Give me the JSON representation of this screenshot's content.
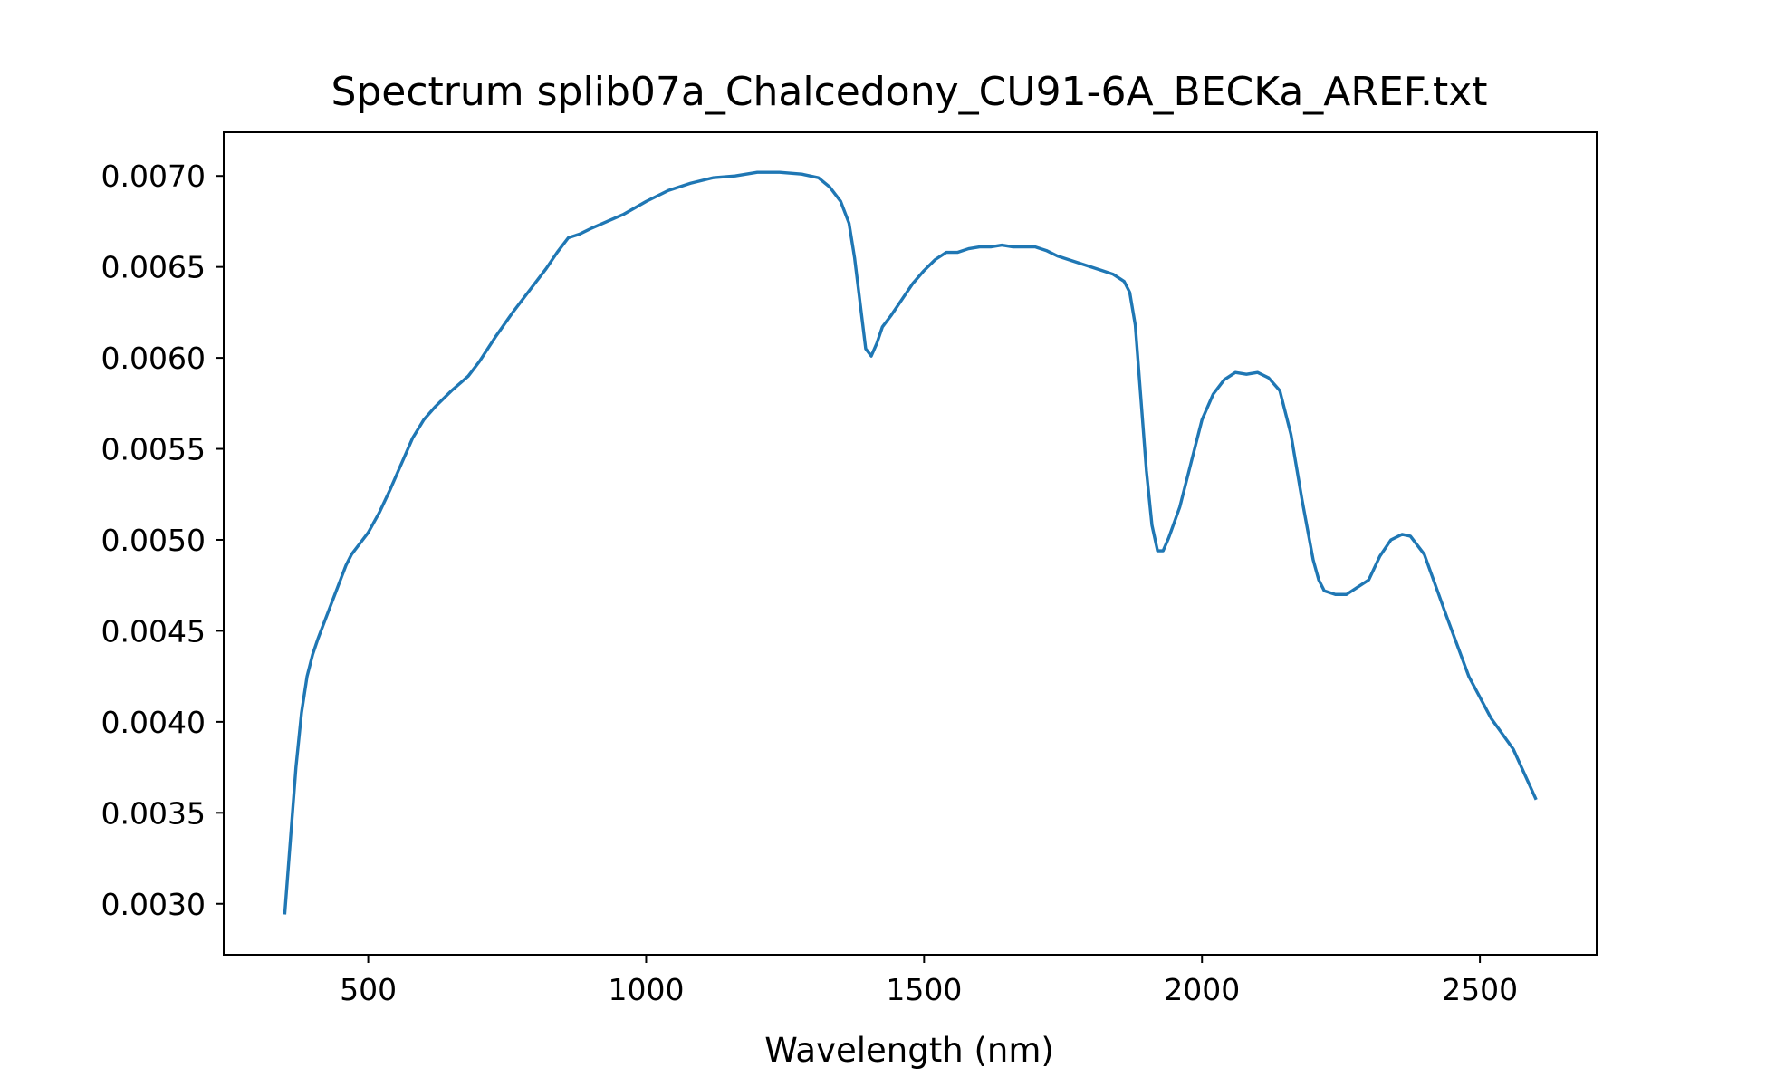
{
  "chart_data": {
    "type": "line",
    "title": "Spectrum splib07a_Chalcedony_CU91-6A_BECKa_AREF.txt",
    "xlabel": "Wavelength (nm)",
    "ylabel": "",
    "xlim": [
      240,
      2710
    ],
    "ylim": [
      0.00272,
      0.00724
    ],
    "xticks": [
      500,
      1000,
      1500,
      2000,
      2500
    ],
    "xtick_labels": [
      "500",
      "1000",
      "1500",
      "2000",
      "2500"
    ],
    "yticks": [
      0.003,
      0.0035,
      0.004,
      0.0045,
      0.005,
      0.0055,
      0.006,
      0.0065,
      0.007
    ],
    "ytick_labels": [
      "0.0030",
      "0.0035",
      "0.0040",
      "0.0045",
      "0.0050",
      "0.0055",
      "0.0060",
      "0.0065",
      "0.0070"
    ],
    "grid": false,
    "line_color": "#1f77b4",
    "series": [
      {
        "x": [
          350,
          360,
          370,
          380,
          390,
          400,
          410,
          420,
          430,
          440,
          450,
          460,
          470,
          480,
          490,
          500,
          520,
          540,
          560,
          580,
          600,
          620,
          650,
          680,
          700,
          730,
          760,
          790,
          820,
          840,
          860,
          880,
          900,
          930,
          960,
          1000,
          1040,
          1080,
          1120,
          1160,
          1200,
          1240,
          1280,
          1310,
          1330,
          1350,
          1365,
          1375,
          1385,
          1395,
          1405,
          1415,
          1425,
          1440,
          1460,
          1480,
          1500,
          1520,
          1540,
          1560,
          1580,
          1600,
          1620,
          1640,
          1660,
          1680,
          1700,
          1720,
          1740,
          1760,
          1780,
          1800,
          1820,
          1840,
          1860,
          1870,
          1880,
          1890,
          1900,
          1910,
          1920,
          1930,
          1940,
          1960,
          1980,
          2000,
          2020,
          2040,
          2060,
          2080,
          2100,
          2120,
          2140,
          2160,
          2180,
          2200,
          2210,
          2220,
          2240,
          2260,
          2280,
          2300,
          2320,
          2340,
          2360,
          2375,
          2400,
          2440,
          2480,
          2520,
          2560,
          2600
        ],
        "y": [
          0.00295,
          0.00335,
          0.00375,
          0.00405,
          0.00425,
          0.00437,
          0.00446,
          0.00454,
          0.00462,
          0.0047,
          0.00478,
          0.00486,
          0.00492,
          0.00496,
          0.005,
          0.00504,
          0.00515,
          0.00528,
          0.00542,
          0.00556,
          0.00566,
          0.00573,
          0.00582,
          0.0059,
          0.00598,
          0.00612,
          0.00625,
          0.00637,
          0.00649,
          0.00658,
          0.00666,
          0.00668,
          0.00671,
          0.00675,
          0.00679,
          0.00686,
          0.00692,
          0.00696,
          0.00699,
          0.007,
          0.00702,
          0.00702,
          0.00701,
          0.00699,
          0.00694,
          0.00686,
          0.00674,
          0.00655,
          0.0063,
          0.00605,
          0.00601,
          0.00608,
          0.00617,
          0.00623,
          0.00632,
          0.00641,
          0.00648,
          0.00654,
          0.00658,
          0.00658,
          0.0066,
          0.00661,
          0.00661,
          0.00662,
          0.00661,
          0.00661,
          0.00661,
          0.00659,
          0.00656,
          0.00654,
          0.00652,
          0.0065,
          0.00648,
          0.00646,
          0.00642,
          0.00636,
          0.00618,
          0.00578,
          0.00538,
          0.00508,
          0.00494,
          0.00494,
          0.00501,
          0.00518,
          0.00542,
          0.00566,
          0.0058,
          0.00588,
          0.00592,
          0.00591,
          0.00592,
          0.00589,
          0.00582,
          0.00558,
          0.00522,
          0.00489,
          0.00478,
          0.00472,
          0.0047,
          0.0047,
          0.00474,
          0.00478,
          0.00491,
          0.005,
          0.00503,
          0.00502,
          0.00492,
          0.00458,
          0.00425,
          0.00402,
          0.00385,
          0.00358
        ]
      }
    ]
  }
}
